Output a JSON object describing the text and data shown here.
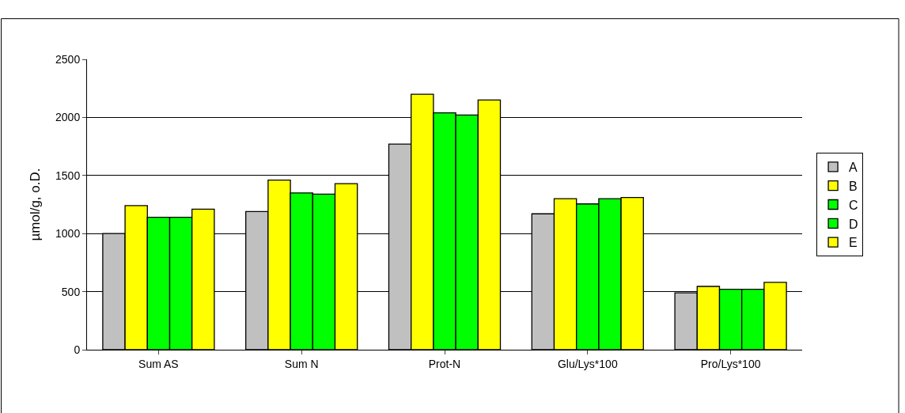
{
  "chart_data": {
    "type": "bar",
    "ylabel": "µmol/g, o.D.",
    "categories": [
      "Sum AS",
      "Sum N",
      "Prot-N",
      "Glu/Lys*100",
      "Pro/Lys*100"
    ],
    "series": [
      {
        "name": "A",
        "color": "#c0c0c0",
        "values": [
          1000,
          1190,
          1770,
          1170,
          490
        ]
      },
      {
        "name": "B",
        "color": "#ffff00",
        "values": [
          1240,
          1460,
          2200,
          1300,
          545
        ]
      },
      {
        "name": "C",
        "color": "#00ff00",
        "values": [
          1140,
          1350,
          2040,
          1255,
          520
        ]
      },
      {
        "name": "D",
        "color": "#00ff00",
        "values": [
          1140,
          1340,
          2020,
          1300,
          520
        ]
      },
      {
        "name": "E",
        "color": "#ffff00",
        "values": [
          1210,
          1430,
          2150,
          1310,
          580
        ]
      }
    ],
    "ylim": [
      0,
      2500
    ],
    "yticks": [
      0,
      500,
      1000,
      1500,
      2000,
      2500
    ],
    "grid": "y",
    "legend": "right"
  }
}
